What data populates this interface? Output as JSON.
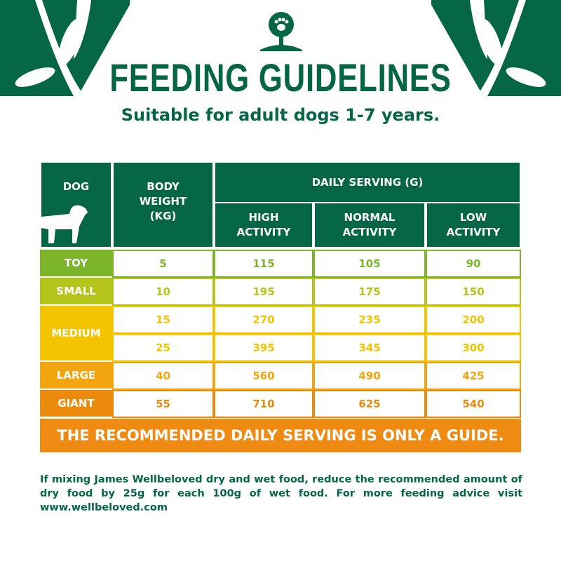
{
  "header": {
    "title": "FEEDING GUIDELINES",
    "subtitle": "Suitable for adult dogs 1-7 years.",
    "logo": "tree-paw-logo"
  },
  "table": {
    "col_dog": "DOG",
    "col_weight": "BODY WEIGHT (KG)",
    "col_daily": "DAILY SERVING (G)",
    "col_high": "HIGH ACTIVITY",
    "col_normal": "NORMAL ACTIVITY",
    "col_low": "LOW ACTIVITY",
    "groups": [
      {
        "label": "TOY",
        "color": "#7cb52a",
        "rows": [
          {
            "weight": "5",
            "high": "115",
            "normal": "105",
            "low": "90"
          }
        ]
      },
      {
        "label": "SMALL",
        "color": "#b5c41b",
        "rows": [
          {
            "weight": "10",
            "high": "195",
            "normal": "175",
            "low": "150"
          }
        ]
      },
      {
        "label": "MEDIUM",
        "color": "#f4c400",
        "rows": [
          {
            "weight": "15",
            "high": "270",
            "normal": "235",
            "low": "200"
          },
          {
            "weight": "25",
            "high": "395",
            "normal": "345",
            "low": "300"
          }
        ]
      },
      {
        "label": "LARGE",
        "color": "#f3a510",
        "rows": [
          {
            "weight": "40",
            "high": "560",
            "normal": "490",
            "low": "425"
          }
        ]
      },
      {
        "label": "GIANT",
        "color": "#ec8a0e",
        "rows": [
          {
            "weight": "55",
            "high": "710",
            "normal": "625",
            "low": "540"
          }
        ]
      }
    ]
  },
  "banner": "THE RECOMMENDED DAILY SERVING IS ONLY A GUIDE.",
  "note": "If mixing James Wellbeloved dry and wet food, reduce the recommended amount of dry food by 25g for each 100g of wet food. For more feeding advice visit www.wellbeloved.com",
  "colors": {
    "brand_green": "#056645",
    "banner_orange": "#ef8a12"
  }
}
